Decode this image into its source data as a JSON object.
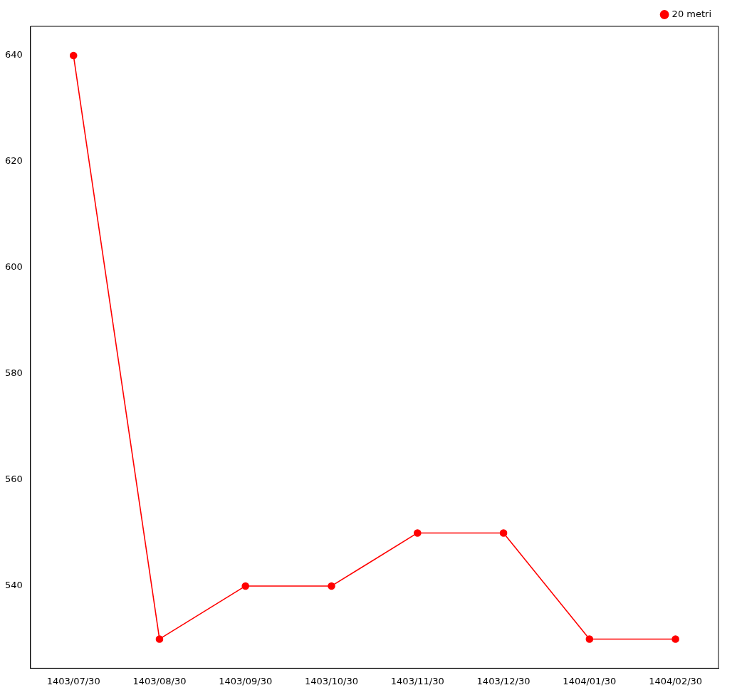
{
  "chart_data": {
    "type": "line",
    "categories": [
      "1403/07/30",
      "1403/08/30",
      "1403/09/30",
      "1403/10/30",
      "1403/11/30",
      "1403/12/30",
      "1404/01/30",
      "1404/02/30"
    ],
    "series": [
      {
        "name": "20 metri",
        "color": "#ff0000",
        "values": [
          640,
          530,
          540,
          540,
          550,
          550,
          530,
          530
        ]
      }
    ],
    "ylim": [
      524.5,
      645.5
    ],
    "yticks": [
      540,
      560,
      580,
      600,
      620,
      640
    ],
    "grid": false,
    "legend": "top right",
    "marker": "circle",
    "line_style": "solid"
  }
}
